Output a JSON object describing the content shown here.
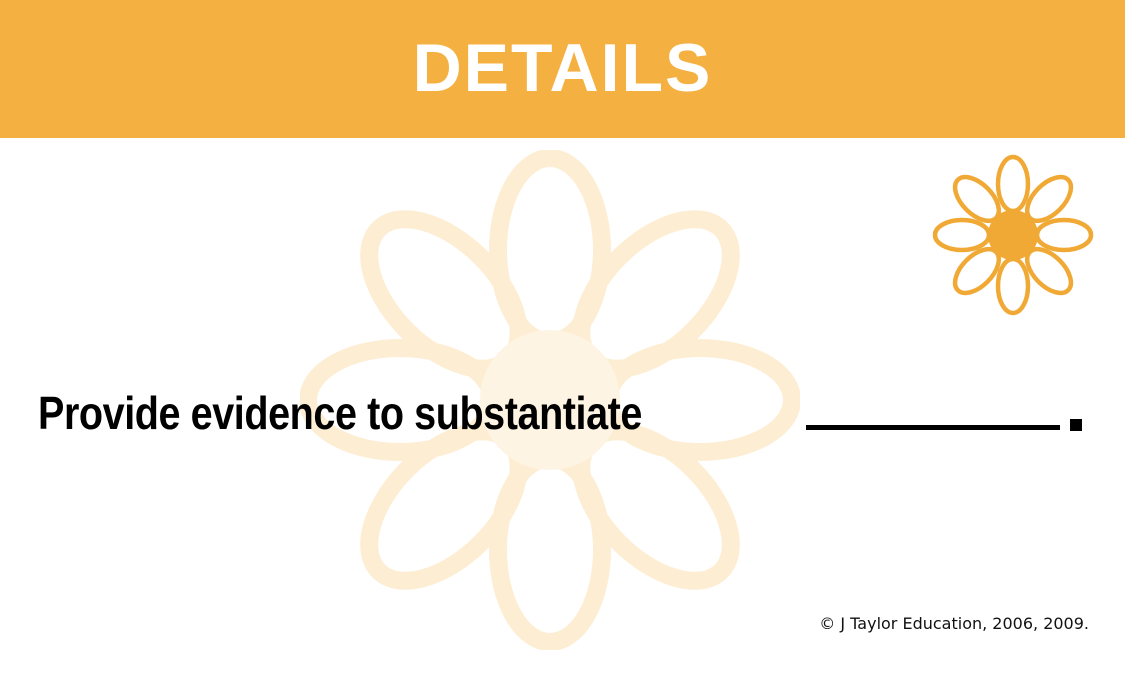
{
  "header": {
    "title": "DETAILS",
    "band_color": "#f4b041"
  },
  "decor": {
    "corner_flower_icon": "daisy-icon",
    "watermark_icon": "daisy-icon",
    "flower_color": "#f0a935",
    "watermark_color": "#fdeed3"
  },
  "prompt": {
    "text": "Provide evidence to substantiate",
    "blank": "__________",
    "end_punctuation": "."
  },
  "footer": {
    "copyright": "© J Taylor Education, 2006, 2009."
  }
}
